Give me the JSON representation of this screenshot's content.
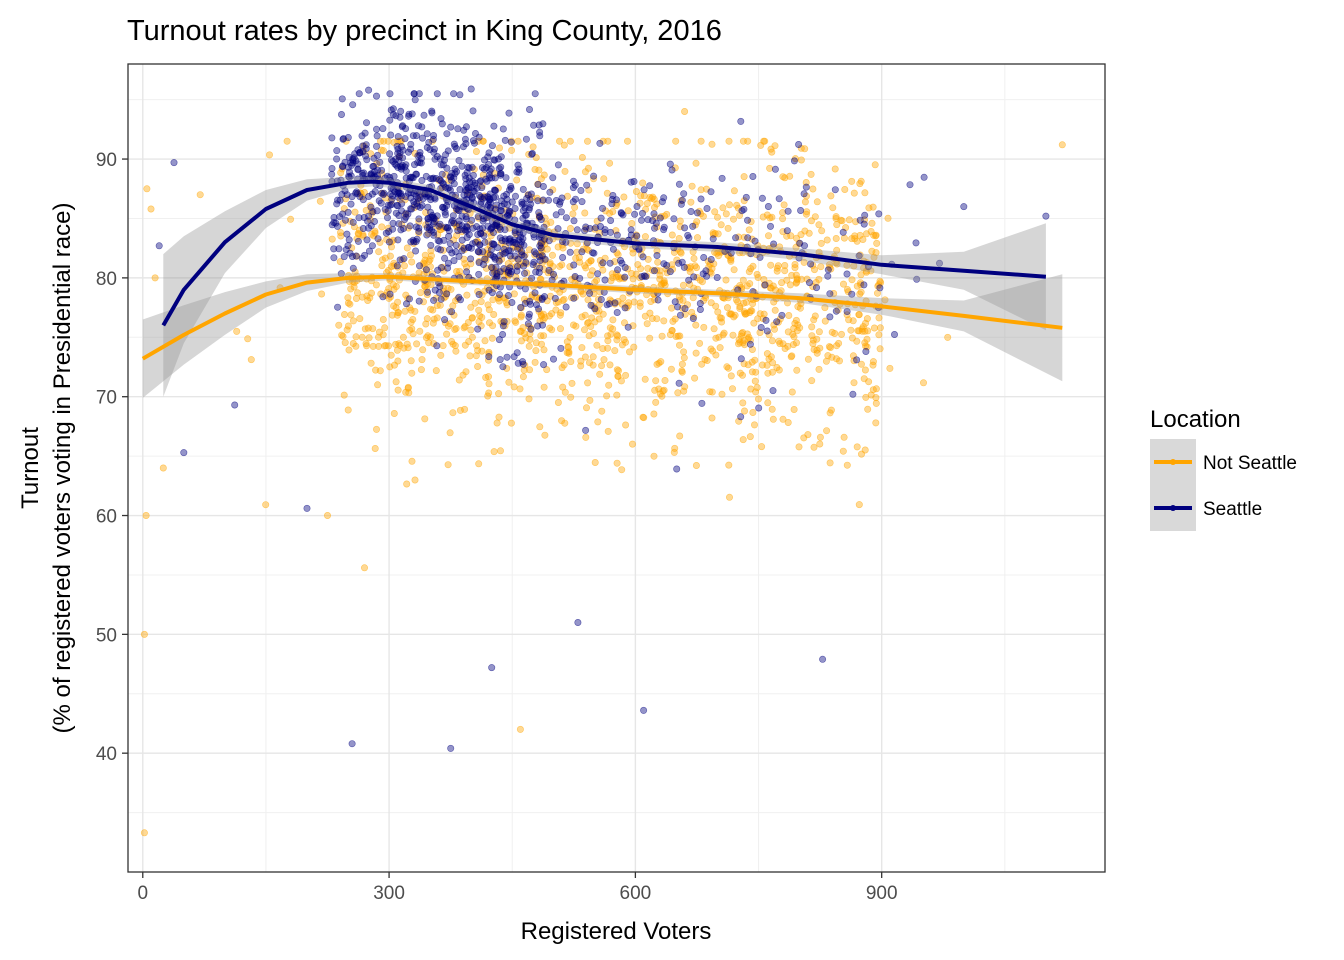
{
  "chart_data": {
    "type": "scatter",
    "title": "Turnout rates by precinct in King County, 2016",
    "xlabel": "Registered Voters",
    "ylabel_lines": [
      "Turnout",
      "(% of registered voters voting in Presidential race)"
    ],
    "xlim": [
      -18,
      1172
    ],
    "ylim": [
      30,
      98
    ],
    "x_ticks": [
      0,
      300,
      600,
      900
    ],
    "y_ticks": [
      40,
      50,
      60,
      70,
      80,
      90
    ],
    "grid": true,
    "legend": {
      "title": "Location",
      "position": "right",
      "entries": [
        "Not Seattle",
        "Seattle"
      ]
    },
    "series": [
      {
        "name": "Not Seattle",
        "color": "#FFA500",
        "smooth": {
          "x": [
            0,
            50,
            100,
            150,
            200,
            250,
            300,
            350,
            400,
            500,
            600,
            700,
            800,
            900,
            1000,
            1120
          ],
          "y": [
            73.2,
            75.2,
            77.0,
            78.6,
            79.6,
            80.0,
            80.1,
            79.9,
            79.7,
            79.4,
            79.0,
            78.7,
            78.3,
            77.6,
            76.8,
            75.8
          ],
          "se": [
            3.3,
            2.5,
            1.8,
            1.1,
            0.7,
            0.4,
            0.3,
            0.3,
            0.3,
            0.3,
            0.3,
            0.3,
            0.4,
            0.7,
            1.3,
            4.5
          ]
        },
        "outliers": [
          {
            "x": 2,
            "y": 50.0
          },
          {
            "x": 2,
            "y": 33.3
          },
          {
            "x": 4,
            "y": 60.0
          },
          {
            "x": 5,
            "y": 87.5
          },
          {
            "x": 10,
            "y": 85.8
          },
          {
            "x": 15,
            "y": 80.0
          },
          {
            "x": 25,
            "y": 64.0
          },
          {
            "x": 70,
            "y": 87.0
          },
          {
            "x": 225,
            "y": 60.0
          },
          {
            "x": 270,
            "y": 55.6
          },
          {
            "x": 460,
            "y": 42.0
          },
          {
            "x": 660,
            "y": 94.0
          },
          {
            "x": 1120,
            "y": 91.2
          }
        ]
      },
      {
        "name": "Seattle",
        "color": "#00007F",
        "smooth": {
          "x": [
            25,
            50,
            100,
            150,
            200,
            250,
            280,
            300,
            350,
            400,
            450,
            500,
            600,
            700,
            800,
            900,
            1000,
            1100
          ],
          "y": [
            76.0,
            79.0,
            83.0,
            85.8,
            87.4,
            88.0,
            88.1,
            88.0,
            87.4,
            86.0,
            84.5,
            83.6,
            82.9,
            82.6,
            82.0,
            81.1,
            80.6,
            80.1
          ],
          "se": [
            6.0,
            4.5,
            2.6,
            1.6,
            0.9,
            0.5,
            0.4,
            0.4,
            0.4,
            0.4,
            0.4,
            0.4,
            0.4,
            0.4,
            0.5,
            0.8,
            1.6,
            4.5
          ]
        },
        "outliers": [
          {
            "x": 20,
            "y": 82.7
          },
          {
            "x": 38,
            "y": 89.7
          },
          {
            "x": 50,
            "y": 65.3
          },
          {
            "x": 112,
            "y": 69.3
          },
          {
            "x": 200,
            "y": 60.6
          },
          {
            "x": 255,
            "y": 40.8
          },
          {
            "x": 375,
            "y": 40.4
          },
          {
            "x": 425,
            "y": 47.2
          },
          {
            "x": 530,
            "y": 51.0
          },
          {
            "x": 610,
            "y": 43.6
          },
          {
            "x": 828,
            "y": 47.9
          },
          {
            "x": 275,
            "y": 95.8
          },
          {
            "x": 400,
            "y": 95.9
          },
          {
            "x": 1100,
            "y": 85.2
          },
          {
            "x": 1000,
            "y": 86.0
          }
        ]
      }
    ]
  }
}
